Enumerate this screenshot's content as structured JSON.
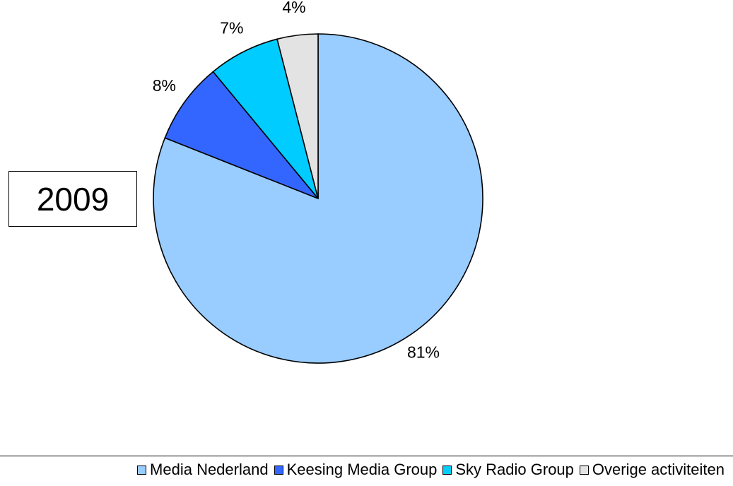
{
  "chart_data": {
    "type": "pie",
    "categories": [
      "Media Nederland",
      "Keesing Media Group",
      "Sky Radio Group",
      "Overige activiteiten"
    ],
    "values": [
      81,
      8,
      7,
      4
    ],
    "labels": [
      "81%",
      "8%",
      "7%",
      "4%"
    ],
    "colors": [
      "#99ccff",
      "#3366ff",
      "#00ccff",
      "#e3e3e3"
    ],
    "annotation": "2009",
    "legend_position": "bottom",
    "start_angle_deg": 0,
    "direction": "clockwise"
  }
}
